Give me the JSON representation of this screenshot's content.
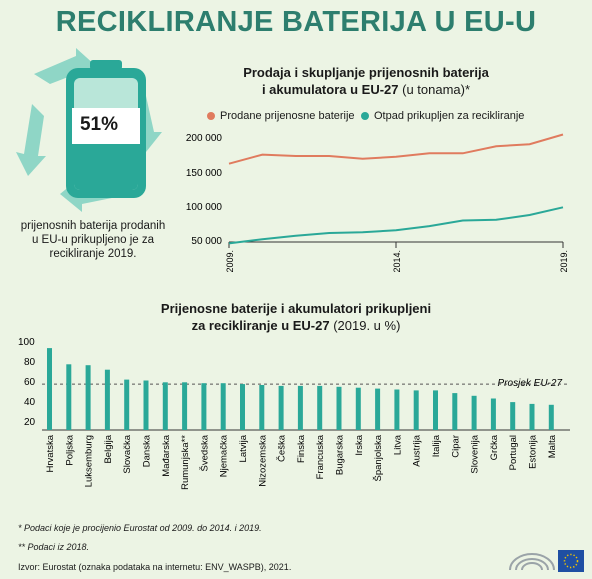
{
  "title": "RECIKLIRANJE BATERIJA U EU-U",
  "stat": {
    "value": "51%",
    "text": "prijenosnih baterija prodanih u EU-u prikupljeno je za recikliranje 2019."
  },
  "line_chart": {
    "title_line1": "Prodaja i skupljanje prijenosnih baterija",
    "title_line2_bold": "i akumulatora u EU-27",
    "title_line2_rest": " (u tonama)*",
    "legend": [
      "Prodane prijenosne baterije",
      "Otpad prikupljen za recikliranje"
    ],
    "y_ticks": [
      "200 000",
      "150 000",
      "100 000",
      "50 000"
    ],
    "x_ticks": [
      "2009.",
      "2014.",
      "2019."
    ]
  },
  "bar_chart": {
    "title_line1": "Prijenosne baterije i akumulatori prikupljeni",
    "title_line2_bold": "za recikliranje u EU-27",
    "title_line2_rest": " (2019. u %)",
    "avg_label": "Prosjek EU-27",
    "y_ticks": [
      "100",
      "80",
      "60",
      "40",
      "20"
    ]
  },
  "colors": {
    "sold": "#e07b5e",
    "collected": "#2aa898",
    "bar": "#2aa898",
    "title": "#2d7e6e",
    "background": "#ecf4e4"
  },
  "chart_data": [
    {
      "type": "line",
      "title": "Prodaja i skupljanje prijenosnih baterija i akumulatora u EU-27 (u tonama)*",
      "x": [
        2009,
        2010,
        2011,
        2012,
        2013,
        2014,
        2015,
        2016,
        2017,
        2018,
        2019
      ],
      "series": [
        {
          "name": "Prodane prijenosne baterije",
          "values": [
            163000,
            176000,
            174000,
            174000,
            170000,
            173000,
            178000,
            178000,
            188000,
            191000,
            205000
          ]
        },
        {
          "name": "Otpad prikupljen za recikliranje",
          "values": [
            48000,
            54000,
            59000,
            63000,
            64000,
            67000,
            73000,
            81000,
            82000,
            89000,
            100000
          ]
        }
      ],
      "ylim": [
        50000,
        210000
      ],
      "grid": false,
      "legend": "top"
    },
    {
      "type": "bar",
      "title": "Prijenosne baterije i akumulatori prikupljeni za recikliranje u EU-27 (2019. u %)",
      "categories": [
        "Hrvatska",
        "Poljska",
        "Luksemburg",
        "Belgija",
        "Slovačka",
        "Danska",
        "Mađarska",
        "Rumunjska**",
        "Švedska",
        "Njemačka",
        "Latvija",
        "Nizozemska",
        "Češka",
        "Finska",
        "Francuska",
        "Bugarska",
        "Irska",
        "Španjolska",
        "Litva",
        "Austrija",
        "Italija",
        "Cipar",
        "Slovenija",
        "Grčka",
        "Portugal",
        "Estonija",
        "Malta"
      ],
      "values": [
        91,
        73,
        72,
        67,
        56,
        55,
        53,
        53,
        52,
        52,
        51,
        50,
        49,
        49,
        49,
        48,
        47,
        46,
        45,
        44,
        44,
        41,
        38,
        35,
        31,
        29,
        28
      ],
      "average": {
        "label": "Prosjek EU-27",
        "value": 51
      },
      "ylim": [
        0,
        100
      ],
      "grid": false
    }
  ],
  "footnotes": [
    "* Podaci koje je procijenio Eurostat od 2009. do 2014. i 2019.",
    "** Podaci iz 2018.",
    "Izvor: Eurostat (oznaka podataka na internetu: ENV_WASPB), 2021."
  ]
}
